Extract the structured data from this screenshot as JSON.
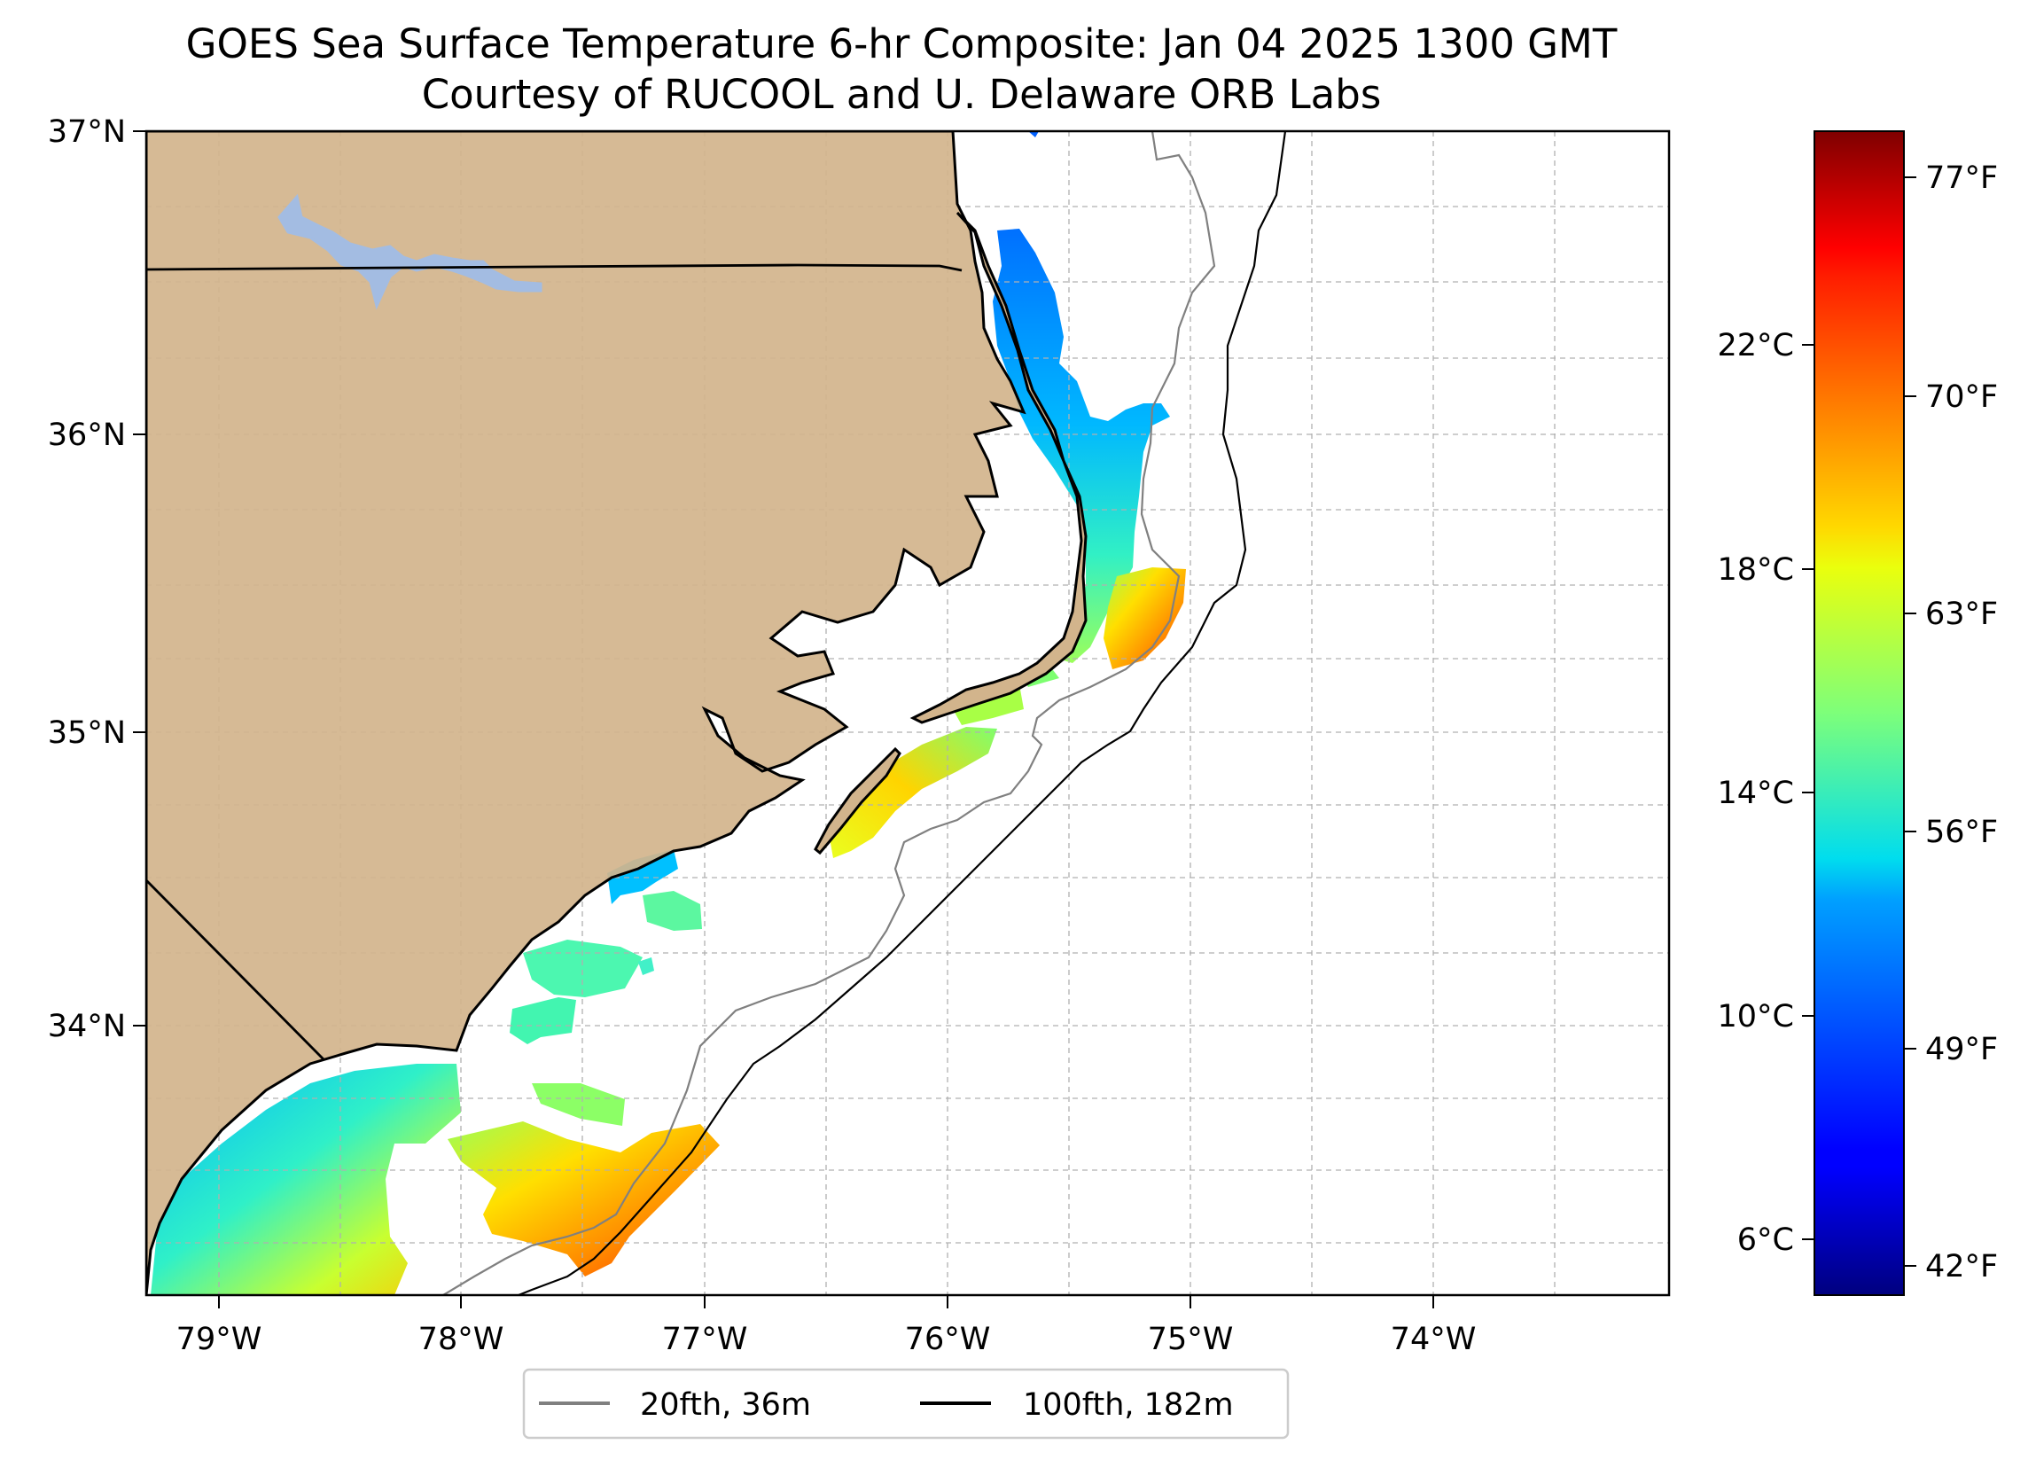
{
  "title": {
    "line1": "GOES Sea Surface Temperature 6-hr Composite: Jan 04 2025 1300 GMT",
    "line2": "Courtesy of RUCOOL and U. Delaware ORB Labs"
  },
  "map": {
    "lon_range": [
      -79.3,
      -73.0
    ],
    "lat_range": [
      33.15,
      37.0
    ],
    "lat_ticks": [
      {
        "value": 37,
        "label": "37°N"
      },
      {
        "value": 36,
        "label": "36°N"
      },
      {
        "value": 35,
        "label": "35°N"
      },
      {
        "value": 34,
        "label": "34°N"
      }
    ],
    "lon_ticks": [
      {
        "value": -79,
        "label": "79°W"
      },
      {
        "value": -78,
        "label": "78°W"
      },
      {
        "value": -77,
        "label": "77°W"
      },
      {
        "value": -76,
        "label": "76°W"
      },
      {
        "value": -75,
        "label": "75°W"
      },
      {
        "value": -74,
        "label": "74°W"
      }
    ],
    "land_color": "#d2b48c",
    "lake_color": "#a3bce2",
    "grid": "dashed"
  },
  "colorbar": {
    "colormap": "jet",
    "celsius_labels": [
      {
        "value": 22,
        "label": "22°C"
      },
      {
        "value": 18,
        "label": "18°C"
      },
      {
        "value": 14,
        "label": "14°C"
      },
      {
        "value": 10,
        "label": "10°C"
      },
      {
        "value": 6,
        "label": "6°C"
      }
    ],
    "fahrenheit_labels": [
      {
        "value": 77,
        "label": "77°F"
      },
      {
        "value": 70,
        "label": "70°F"
      },
      {
        "value": 63,
        "label": "63°F"
      },
      {
        "value": 56,
        "label": "56°F"
      },
      {
        "value": 49,
        "label": "49°F"
      },
      {
        "value": 42,
        "label": "42°F"
      }
    ]
  },
  "legend": {
    "items": [
      {
        "label": "20fth, 36m",
        "color": "#808080"
      },
      {
        "label": "100fth, 182m",
        "color": "#000000"
      }
    ]
  }
}
